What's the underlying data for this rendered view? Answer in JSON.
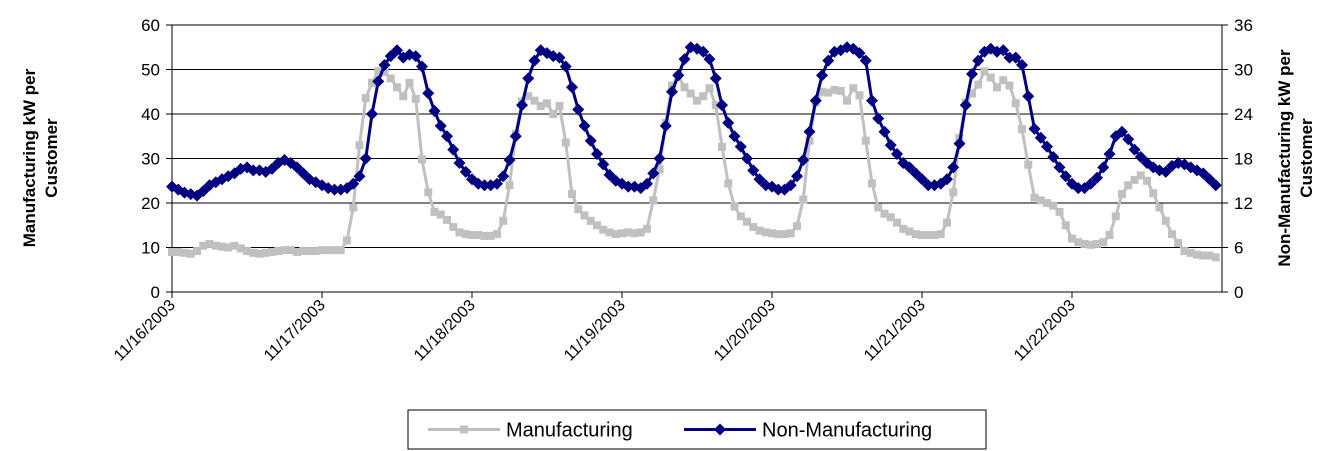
{
  "chart_data": {
    "type": "line",
    "categories": [
      "11/16/2003",
      null,
      null,
      null,
      null,
      null,
      null,
      null,
      null,
      null,
      null,
      null,
      null,
      null,
      null,
      null,
      null,
      null,
      null,
      null,
      null,
      null,
      null,
      null,
      "11/17/2003",
      null,
      null,
      null,
      null,
      null,
      null,
      null,
      null,
      null,
      null,
      null,
      null,
      null,
      null,
      null,
      null,
      null,
      null,
      null,
      null,
      null,
      null,
      null,
      "11/18/2003",
      null,
      null,
      null,
      null,
      null,
      null,
      null,
      null,
      null,
      null,
      null,
      null,
      null,
      null,
      null,
      null,
      null,
      null,
      null,
      null,
      null,
      null,
      null,
      "11/19/2003",
      null,
      null,
      null,
      null,
      null,
      null,
      null,
      null,
      null,
      null,
      null,
      null,
      null,
      null,
      null,
      null,
      null,
      null,
      null,
      null,
      null,
      null,
      null,
      "11/20/2003",
      null,
      null,
      null,
      null,
      null,
      null,
      null,
      null,
      null,
      null,
      null,
      null,
      null,
      null,
      null,
      null,
      null,
      null,
      null,
      null,
      null,
      null,
      null,
      "11/21/2003",
      null,
      null,
      null,
      null,
      null,
      null,
      null,
      null,
      null,
      null,
      null,
      null,
      null,
      null,
      null,
      null,
      null,
      null,
      null,
      null,
      null,
      null,
      null,
      "11/22/2003",
      null,
      null,
      null,
      null,
      null,
      null,
      null,
      null,
      null,
      null,
      null,
      null,
      null,
      null,
      null,
      null,
      null,
      null,
      null,
      null,
      null,
      null,
      null
    ],
    "y_label": "Manufacturing kW per Customer",
    "y2_label": "Non-Manufacturing kW per Customer",
    "ylim": [
      0,
      60
    ],
    "yticks": [
      0,
      10,
      20,
      30,
      40,
      50,
      60
    ],
    "y2lim": [
      0,
      36
    ],
    "y2ticks": [
      0,
      6,
      12,
      18,
      24,
      30,
      36
    ],
    "grid": true,
    "legend": "bottom",
    "series": [
      {
        "name": "Manufacturing",
        "color": "#c0c0c0",
        "marker": "square",
        "values": [
          9,
          9,
          8.8,
          8.6,
          9.2,
          10.4,
          10.8,
          10.4,
          10.2,
          10,
          10.4,
          9.8,
          9.2,
          8.8,
          8.6,
          8.8,
          9,
          9.2,
          9.4,
          9.4,
          9,
          9.2,
          9.2,
          9.2,
          9.4,
          9.4,
          9.4,
          9.4,
          11.6,
          19,
          33,
          43.6,
          47,
          49.6,
          49.4,
          48,
          46,
          44,
          47,
          43.4,
          29.8,
          22.4,
          18,
          17.4,
          16.2,
          14.6,
          13.4,
          13,
          12.8,
          12.8,
          12.6,
          12.6,
          13,
          16,
          24,
          35.6,
          42.8,
          44,
          43,
          41.8,
          42.4,
          40,
          41.8,
          33.6,
          22,
          18.6,
          17.2,
          16,
          15,
          14,
          13.4,
          13,
          13.2,
          13.4,
          13.2,
          13.4,
          14.2,
          20.6,
          27.6,
          38,
          46.4,
          48.6,
          46,
          44.6,
          43,
          44,
          45.8,
          42,
          32.6,
          24.4,
          19.2,
          17,
          15.8,
          14.6,
          13.8,
          13.4,
          13.2,
          13,
          13,
          13.2,
          14.8,
          20.8,
          34,
          42.6,
          45,
          44.8,
          45.4,
          45.2,
          43,
          45.8,
          44.2,
          34,
          24.4,
          19,
          17.6,
          16.8,
          15.6,
          14.2,
          13.6,
          13,
          12.8,
          12.8,
          12.8,
          13,
          15.6,
          22.4,
          34.6,
          42.6,
          44.6,
          46.6,
          49.6,
          48.2,
          46,
          47.6,
          46.4,
          42.4,
          36.6,
          28.6,
          21.2,
          20.6,
          20,
          19.4,
          18,
          15,
          12,
          11.2,
          10.8,
          10.6,
          10.8,
          11.2,
          12.8,
          17,
          22,
          24,
          25.2,
          26.2,
          25,
          22.2,
          19,
          16,
          13,
          11,
          9.2,
          8.8,
          8.4,
          8.2,
          8.2,
          7.8
        ]
      },
      {
        "name": "Non-Manufacturing",
        "color": "#000080",
        "marker": "diamond",
        "axis": "y2",
        "values": [
          14.2,
          13.8,
          13.4,
          13.2,
          13,
          13.6,
          14.4,
          14.8,
          15.2,
          15.6,
          16,
          16.6,
          16.8,
          16.4,
          16.4,
          16.2,
          16.6,
          17.4,
          17.8,
          17.4,
          16.8,
          16,
          15.2,
          14.8,
          14.4,
          14,
          13.8,
          13.8,
          14,
          14.6,
          15.6,
          18,
          24,
          28.4,
          30.6,
          31.8,
          32.6,
          31.6,
          32,
          31.8,
          30.4,
          26.8,
          24.4,
          22.4,
          21,
          19.2,
          17.4,
          16.2,
          15.2,
          14.6,
          14.4,
          14.4,
          14.6,
          15.6,
          17.8,
          21,
          25.2,
          28.8,
          31.2,
          32.6,
          32.2,
          31.8,
          31.6,
          30.4,
          27.6,
          24.6,
          22.4,
          20.4,
          18.6,
          17.2,
          15.8,
          15,
          14.6,
          14.2,
          14.2,
          14,
          14.6,
          16,
          18,
          22.4,
          27,
          29.2,
          31.4,
          33,
          32.8,
          32.4,
          31.4,
          28.8,
          25.2,
          22.8,
          21,
          19.6,
          18,
          16.4,
          15.2,
          14.4,
          14.2,
          13.8,
          13.8,
          14.4,
          15.6,
          17.8,
          21.6,
          25.8,
          29.2,
          31.2,
          32.4,
          32.6,
          33,
          32.8,
          32.2,
          31.2,
          25.8,
          23.4,
          21.6,
          19.8,
          18.6,
          17.4,
          16.8,
          16,
          15.2,
          14.4,
          14.4,
          14.6,
          15.2,
          16.8,
          20,
          25.2,
          29.4,
          31.2,
          32.4,
          32.8,
          32.4,
          32.6,
          31.6,
          31.6,
          30.6,
          26.4,
          22,
          20.8,
          19.6,
          18.2,
          16.8,
          15.6,
          14.6,
          14,
          14,
          14.6,
          15.4,
          16.8,
          18.6,
          21,
          21.6,
          20.6,
          19.2,
          18.2,
          17.4,
          16.8,
          16.4,
          16.2,
          17,
          17.4,
          17.2,
          16.8,
          16.4,
          16,
          15.2,
          14.4
        ]
      }
    ]
  }
}
